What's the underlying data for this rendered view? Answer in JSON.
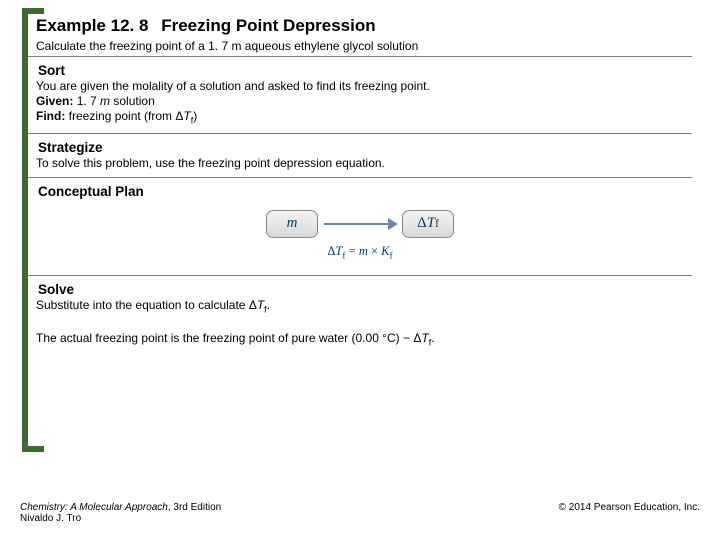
{
  "accent_color": "#3d6b2f",
  "title": {
    "prefix": "Example 12. 8",
    "name": "Freezing Point Depression"
  },
  "problem": "Calculate the freezing point of a 1. 7 m aqueous ethylene glycol solution",
  "sort": {
    "header": "Sort",
    "line1": "You are given the molality of a solution and asked to find its freezing point.",
    "given_label": "Given:",
    "given_val": "1. 7 m solution",
    "find_label": "Find:",
    "find_val_a": "freezing point (from Δ",
    "find_val_b": ")"
  },
  "strategize": {
    "header": "Strategize",
    "body": "To solve this problem, use the freezing point depression equation."
  },
  "plan": {
    "header": "Conceptual Plan",
    "left": "m",
    "right_a": "Δ",
    "right_b": "T",
    "right_c": "f",
    "eq": "ΔTf = m × Kf"
  },
  "solve": {
    "header": "Solve",
    "line1_a": "Substitute into the equation to calculate Δ",
    "line1_b": ".",
    "line2_a": "The actual freezing point is the freezing point of pure water (0.00 °C) − Δ",
    "line2_b": "."
  },
  "footer": {
    "book_title": "Chemistry: A Molecular Approach",
    "edition": ", 3rd Edition",
    "author": "Nivaldo J. Tro",
    "copyright": "© 2014 Pearson Education, Inc."
  }
}
